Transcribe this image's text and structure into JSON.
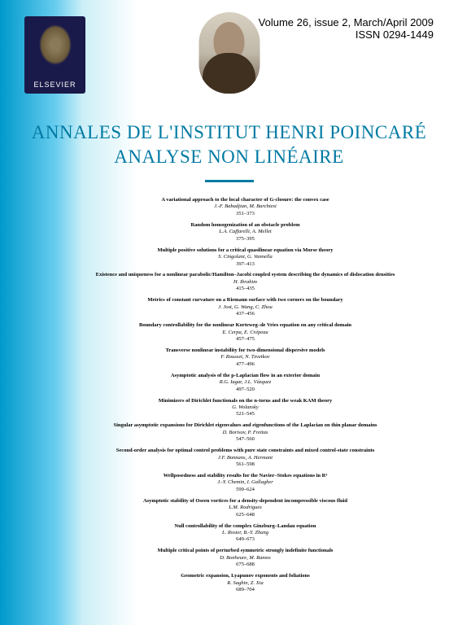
{
  "publisher": "ELSEVIER",
  "issue_line1": "Volume 26, issue 2, March/April 2009",
  "issue_line2": "ISSN 0294-1449",
  "journal_title_line1": "ANNALES DE L'INSTITUT HENRI POINCARÉ",
  "journal_title_line2": "ANALYSE NON LINÉAIRE",
  "divider_color": "#007aa3",
  "title_color": "#007aa3",
  "background_gradient": [
    "#0099cc",
    "#ffffff"
  ],
  "articles": [
    {
      "title": "A variational approach to the local character of G-closure: the convex case",
      "authors": "J.-F. Babadjian, M. Barchiesi",
      "pages": "351–373"
    },
    {
      "title": "Random homogenization of an obstacle problem",
      "authors": "L.A. Caffarelli, A. Mellet",
      "pages": "375–395"
    },
    {
      "title": "Multiple positive solutions for a critical quasilinear equation via Morse theory",
      "authors": "S. Cingolani, G. Vannella",
      "pages": "397–413"
    },
    {
      "title": "Existence and uniqueness for a nonlinear parabolic/Hamilton–Jacobi coupled system describing the dynamics of dislocation densities",
      "authors": "H. Ibrahim",
      "pages": "415–435"
    },
    {
      "title": "Metrics of constant curvature on a Riemann surface with two corners on the boundary",
      "authors": "J. Jost, G. Wang, C. Zhou",
      "pages": "437–456"
    },
    {
      "title": "Boundary controllability for the nonlinear Korteweg–de Vries equation on any critical domain",
      "authors": "E. Cerpa, E. Crépeau",
      "pages": "457–475"
    },
    {
      "title": "Transverse nonlinear instability for two-dimensional dispersive models",
      "authors": "F. Rousset, N. Tzvetkov",
      "pages": "477–496"
    },
    {
      "title": "Asymptotic analysis of the p-Laplacian flow in an exterior domain",
      "authors": "R.G. Iagar, J.L. Vázquez",
      "pages": "497–520"
    },
    {
      "title": "Minimizers of Dirichlet functionals on the n-torus and the weak KAM theory",
      "authors": "G. Wolansky",
      "pages": "521–545"
    },
    {
      "title": "Singular asymptotic expansions for Dirichlet eigenvalues and eigenfunctions of the Laplacian on thin planar domains",
      "authors": "D. Borisov, P. Freitas",
      "pages": "547–560"
    },
    {
      "title": "Second-order analysis for optimal control problems with pure state constraints and mixed control-state constraints",
      "authors": "J.F. Bonnans, A. Hermant",
      "pages": "561–598"
    },
    {
      "title": "Wellposedness and stability results for the Navier–Stokes equations in R³",
      "authors": "J.-Y. Chemin, I. Gallagher",
      "pages": "599–624"
    },
    {
      "title": "Asymptotic stability of Oseen vortices for a density-dependent incompressible viscous fluid",
      "authors": "L.M. Rodrigues",
      "pages": "625–648"
    },
    {
      "title": "Null controllability of the complex Ginzburg–Landau equation",
      "authors": "L. Rosier, B.-Y. Zhang",
      "pages": "649–673"
    },
    {
      "title": "Multiple critical points of perturbed symmetric strongly indefinite functionals",
      "authors": "D. Bonheure, M. Ramos",
      "pages": "675–688"
    },
    {
      "title": "Geometric expansion, Lyapunov exponents and foliations",
      "authors": "R. Saghin, Z. Xia",
      "pages": "689–704"
    }
  ]
}
